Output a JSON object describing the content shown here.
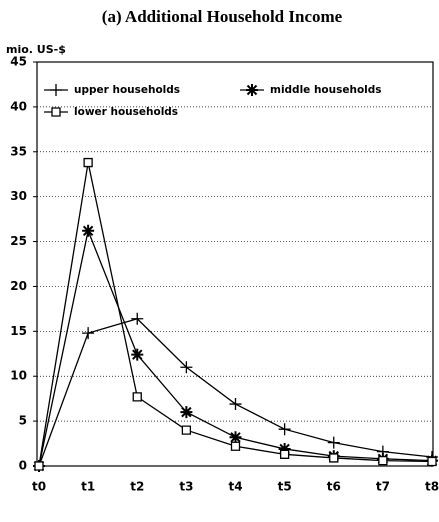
{
  "chart_data": {
    "type": "line",
    "title": "(a) Additional Household Income",
    "y_label": "mio. US-$",
    "categories": [
      "t0",
      "t1",
      "t2",
      "t3",
      "t4",
      "t5",
      "t6",
      "t7",
      "t8"
    ],
    "series": [
      {
        "name": "upper households",
        "color": "#000000",
        "marker": "plus",
        "values": [
          0,
          14.8,
          16.4,
          11,
          6.9,
          4.1,
          2.6,
          1.6,
          1.0
        ]
      },
      {
        "name": "middle households",
        "color": "#000000",
        "marker": "star",
        "values": [
          0,
          26.2,
          12.4,
          6.0,
          3.2,
          1.9,
          1.1,
          0.8,
          0.6
        ]
      },
      {
        "name": "lower households",
        "color": "#000000",
        "marker": "square",
        "values": [
          0,
          33.8,
          7.7,
          4.0,
          2.2,
          1.3,
          0.9,
          0.6,
          0.5
        ]
      }
    ],
    "ylim": [
      0,
      45
    ],
    "yticks": [
      0,
      5,
      10,
      15,
      20,
      25,
      30,
      35,
      40,
      45
    ],
    "grid": true,
    "legend": "upper left"
  }
}
